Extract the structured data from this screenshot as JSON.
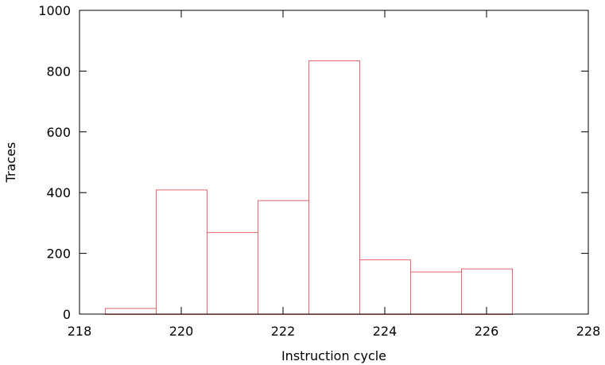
{
  "chart_data": {
    "type": "bar",
    "title": "",
    "xlabel": "Instruction cycle",
    "ylabel": "Traces",
    "xlim": [
      218,
      228
    ],
    "ylim": [
      0,
      1000
    ],
    "x_ticks": [
      218,
      220,
      222,
      224,
      226,
      228
    ],
    "y_ticks": [
      0,
      200,
      400,
      600,
      800,
      1000
    ],
    "bin_width": 1,
    "bins": [
      {
        "x": 219,
        "value": 20
      },
      {
        "x": 220,
        "value": 410
      },
      {
        "x": 221,
        "value": 270
      },
      {
        "x": 222,
        "value": 375
      },
      {
        "x": 223,
        "value": 835
      },
      {
        "x": 224,
        "value": 180
      },
      {
        "x": 225,
        "value": 140
      },
      {
        "x": 226,
        "value": 150
      }
    ],
    "grid": false,
    "bar_color": "#e8646a"
  }
}
